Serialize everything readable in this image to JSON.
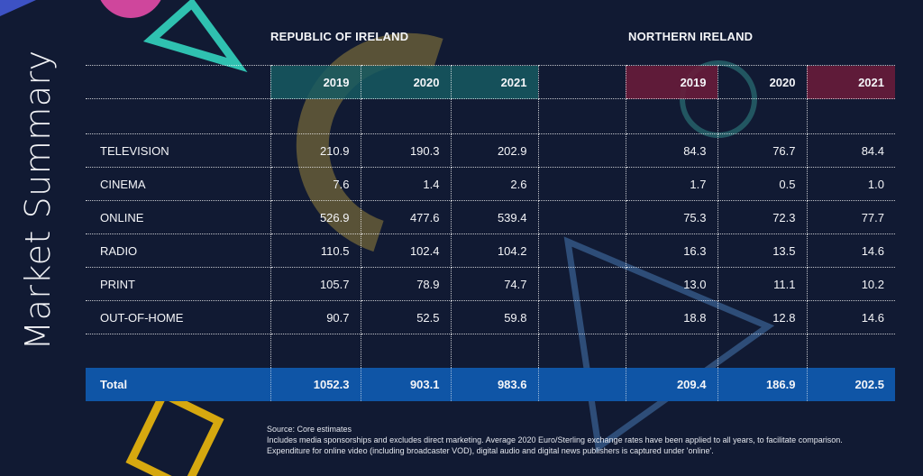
{
  "side_title": "Market Summary",
  "regions": {
    "roi": "REPUBLIC OF IRELAND",
    "ni": "NORTHERN IRELAND"
  },
  "years": [
    "2019",
    "2020",
    "2021"
  ],
  "rows": [
    {
      "label": "TELEVISION",
      "roi": [
        "210.9",
        "190.3",
        "202.9"
      ],
      "ni": [
        "84.3",
        "76.7",
        "84.4"
      ]
    },
    {
      "label": "CINEMA",
      "roi": [
        "7.6",
        "1.4",
        "2.6"
      ],
      "ni": [
        "1.7",
        "0.5",
        "1.0"
      ]
    },
    {
      "label": "ONLINE",
      "roi": [
        "526.9",
        "477.6",
        "539.4"
      ],
      "ni": [
        "75.3",
        "72.3",
        "77.7"
      ]
    },
    {
      "label": "RADIO",
      "roi": [
        "110.5",
        "102.4",
        "104.2"
      ],
      "ni": [
        "16.3",
        "13.5",
        "14.6"
      ]
    },
    {
      "label": "PRINT",
      "roi": [
        "105.7",
        "78.9",
        "74.7"
      ],
      "ni": [
        "13.0",
        "11.1",
        "10.2"
      ]
    },
    {
      "label": "OUT-OF-HOME",
      "roi": [
        "90.7",
        "52.5",
        "59.8"
      ],
      "ni": [
        "18.8",
        "12.8",
        "14.6"
      ]
    }
  ],
  "total": {
    "label": "Total",
    "roi": [
      "1052.3",
      "903.1",
      "983.6"
    ],
    "ni": [
      "209.4",
      "186.9",
      "202.5"
    ]
  },
  "notes": [
    "Source: Core estimates",
    "Includes media sponsorships and excludes direct marketing. Average 2020 Euro/Sterling exchange rates have been applied to all years, to facilitate comparison.",
    "Expenditure for online video (including broadcaster VOD), digital audio and digital news publishers is captured under 'online'."
  ],
  "colors": {
    "background": "#111a33",
    "teal": "#165a62",
    "maroon": "#681c3a",
    "total_blue": "#0f55a6",
    "accent_teal": "#2fc1b0",
    "accent_gold": "#c9a42a",
    "accent_pink": "#d0459a"
  }
}
